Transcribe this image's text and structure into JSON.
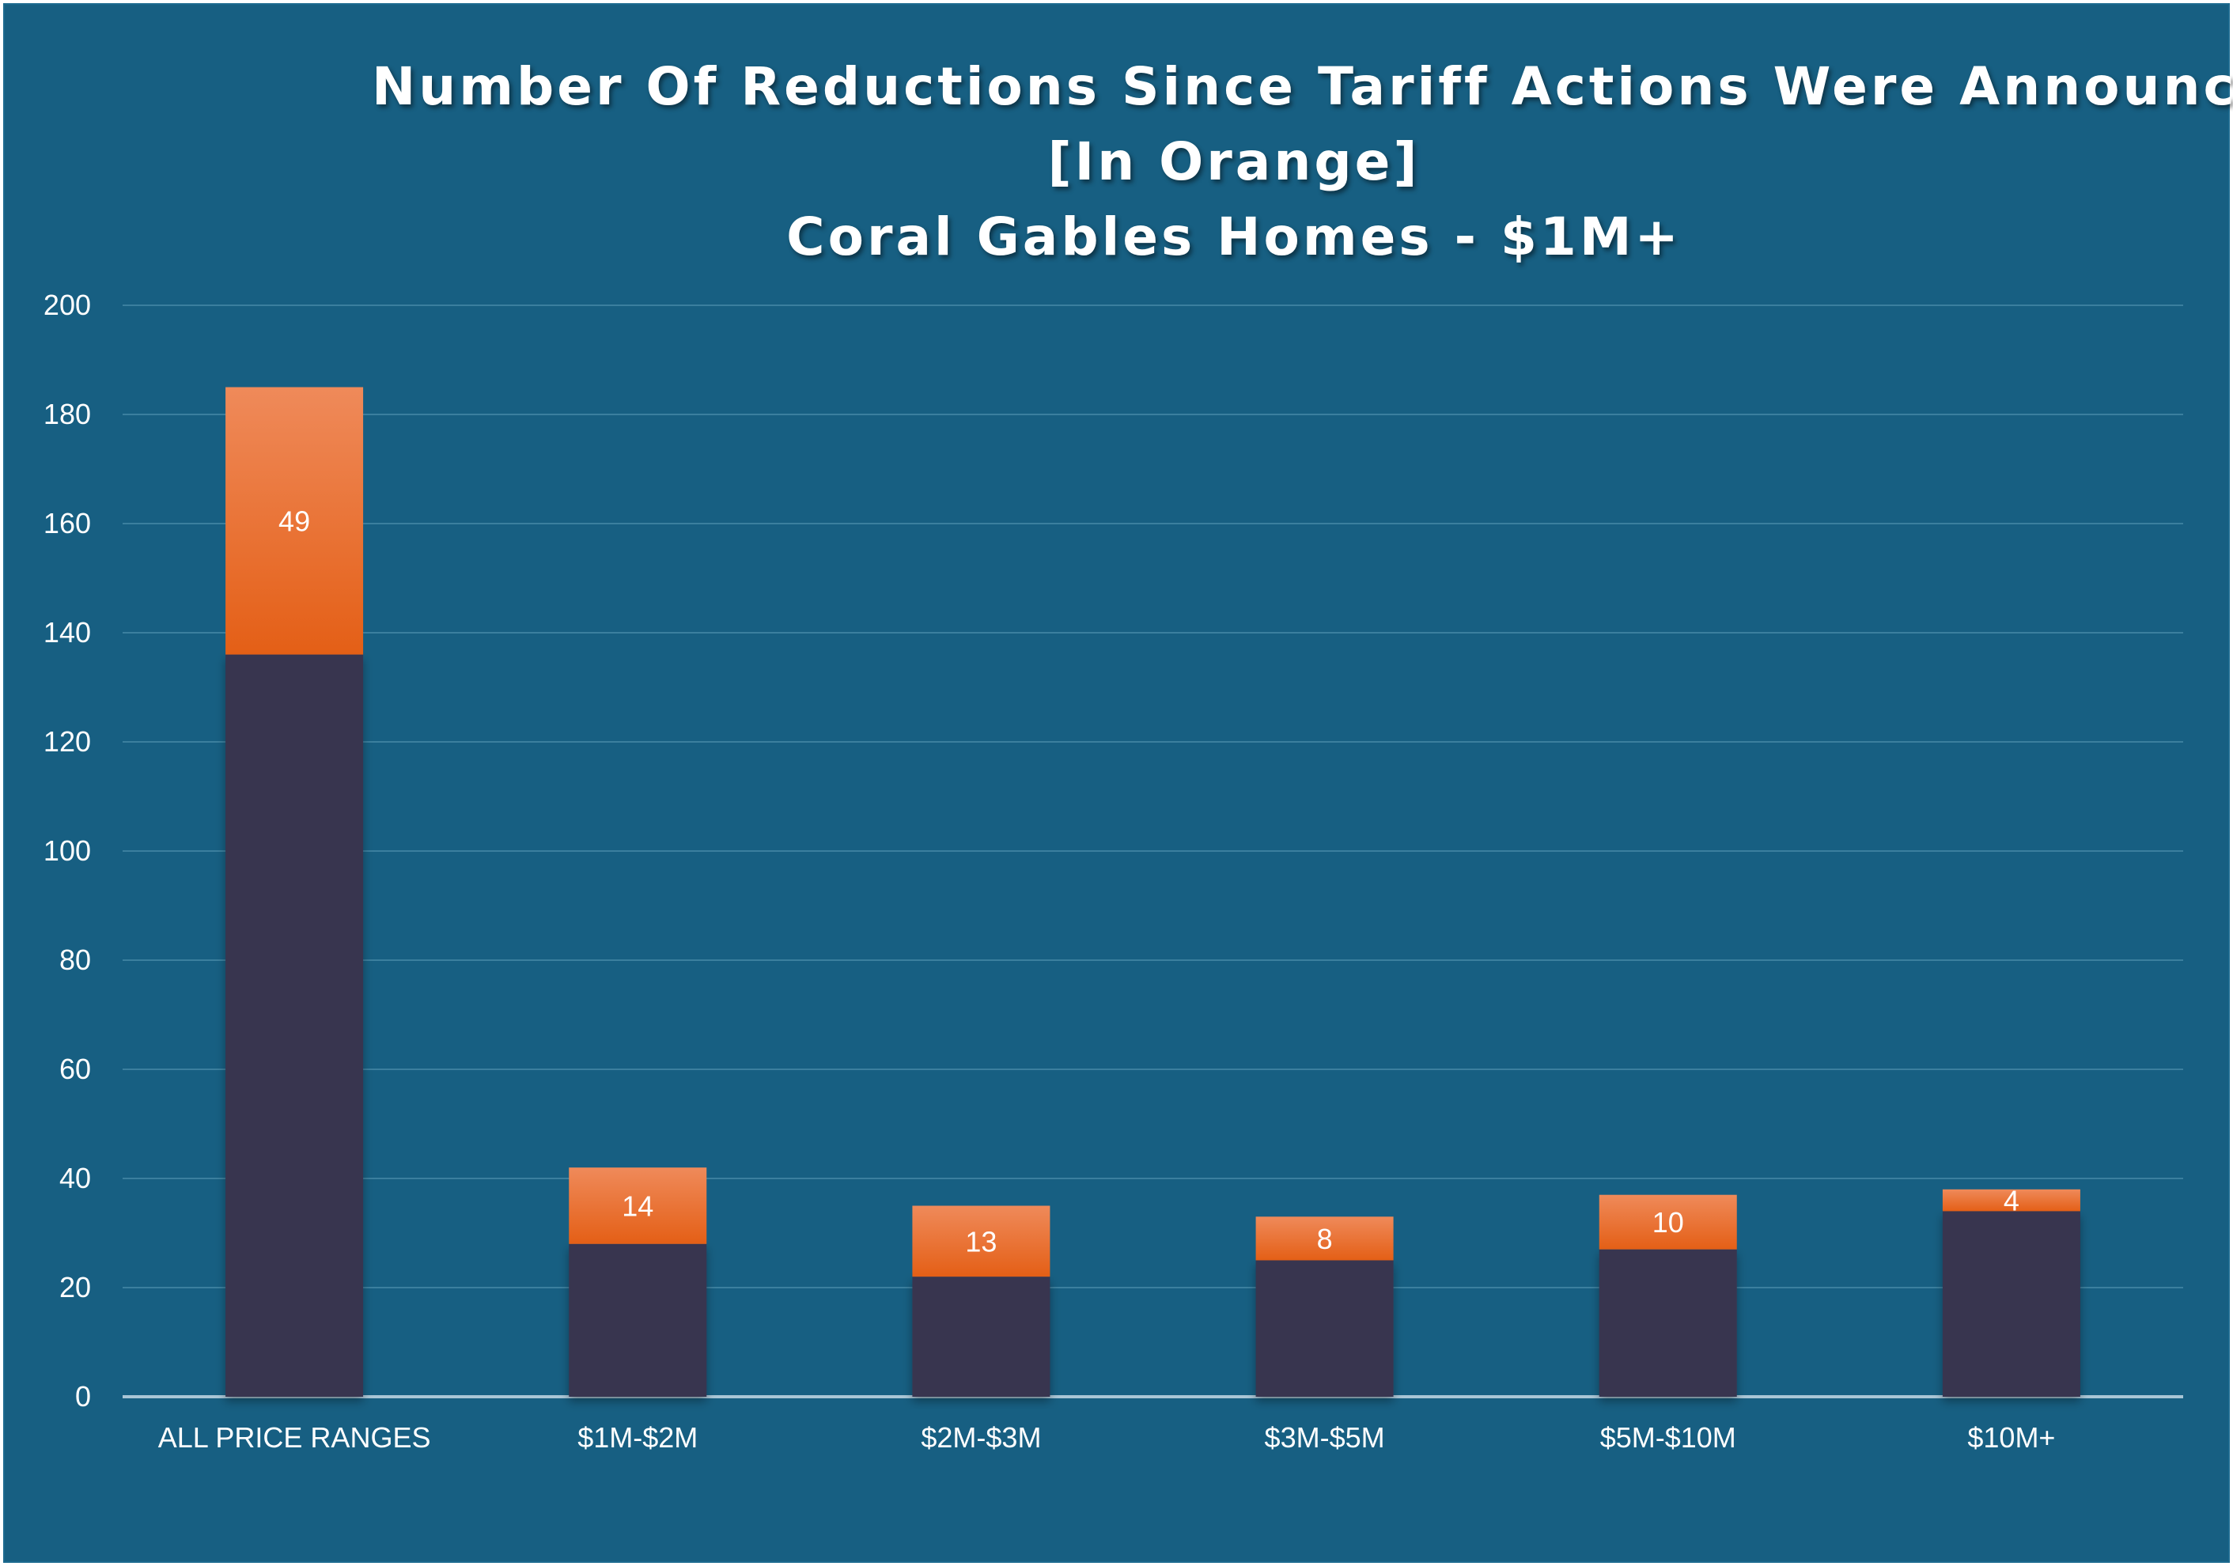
{
  "chart_data": {
    "type": "bar",
    "stacked": true,
    "title": [
      "Number Of Reductions Since Tariff Actions Were Announced",
      "[In Orange]",
      "Coral Gables Homes - $1M+"
    ],
    "xlabel": "",
    "ylabel": "",
    "categories": [
      "ALL PRICE RANGES",
      "$1M-$2M",
      "$2M-$3M",
      "$3M-$5M",
      "$5M-$10M",
      "$10M+"
    ],
    "series": [
      {
        "values": [
          136,
          28,
          22,
          25,
          27,
          34
        ],
        "color": "#37344f"
      },
      {
        "values": [
          49,
          14,
          13,
          8,
          10,
          4
        ],
        "color": "#e8641c",
        "data_labels": true
      }
    ],
    "ylim": [
      0,
      200
    ],
    "yticks": [
      0,
      20,
      40,
      60,
      80,
      100,
      120,
      140,
      160,
      180,
      200
    ],
    "grid": true,
    "legend": "none"
  },
  "colors": {
    "background": "#175f82",
    "gridline": "#3b7f9e",
    "axis_line": "#a9c6d6",
    "base_bar": "#37344f",
    "reduction_bar_top": "#ef8a5a",
    "reduction_bar_bottom": "#e45f16"
  }
}
